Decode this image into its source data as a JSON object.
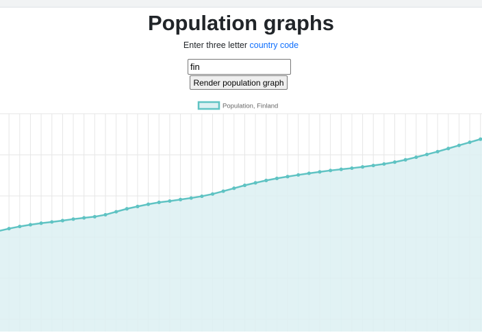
{
  "header": {
    "title": "Population graphs"
  },
  "intro": {
    "text": "Enter three letter ",
    "link_label": "country code"
  },
  "form": {
    "input_value": "fin",
    "button_label": "Render population graph"
  },
  "colors": {
    "series_line": "#5fc3c3",
    "series_fill": "#dcf0f2",
    "link": "#0d6efd",
    "grid": "#e6e6e6"
  },
  "chart_data": {
    "type": "area",
    "legend": [
      "Population, Finland"
    ],
    "legend_position": "top",
    "grid": true,
    "series": [
      {
        "name": "Population, Finland",
        "values": [
          4.43,
          4.458,
          4.482,
          4.502,
          4.519,
          4.533,
          4.548,
          4.565,
          4.579,
          4.592,
          4.614,
          4.648,
          4.681,
          4.707,
          4.732,
          4.753,
          4.768,
          4.785,
          4.802,
          4.822,
          4.847,
          4.879,
          4.912,
          4.945,
          4.973,
          5.0,
          5.023,
          5.043,
          5.062,
          5.08,
          5.096,
          5.112,
          5.125,
          5.138,
          5.152,
          5.168,
          5.185,
          5.206,
          5.232,
          5.261,
          5.292,
          5.324,
          5.359,
          5.394,
          5.429,
          5.464,
          5.498,
          5.533
        ]
      }
    ]
  }
}
